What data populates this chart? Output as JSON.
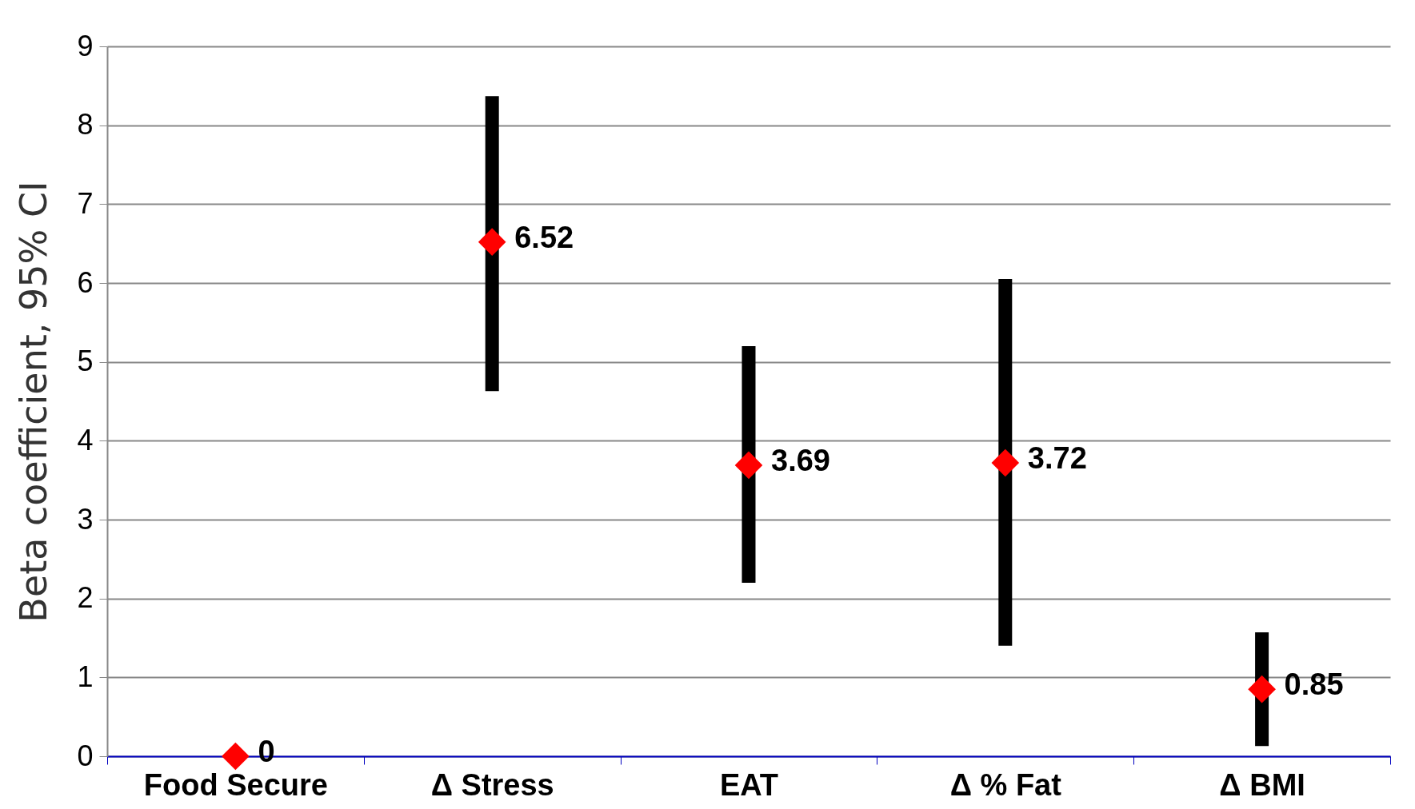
{
  "chart_data": {
    "type": "scatter",
    "ylabel": "Beta coefficient, 95% CI",
    "categories": [
      "Food Secure",
      "Δ Stress",
      "EAT",
      "Δ % Fat",
      "Δ BMI"
    ],
    "series": [
      {
        "color": "#ff0000",
        "values": [
          0,
          6.52,
          3.69,
          3.72,
          0.85
        ],
        "errors": [
          null,
          [
            4.63,
            8.37
          ],
          [
            2.2,
            5.2
          ],
          [
            1.4,
            6.05
          ],
          [
            0.13,
            1.57
          ]
        ]
      }
    ],
    "ylim": [
      0,
      9
    ],
    "yticks": [
      0,
      1,
      2,
      3,
      4,
      5,
      6,
      7,
      8,
      9
    ],
    "grid": "y",
    "marker": "diamond",
    "data_labels": true
  }
}
